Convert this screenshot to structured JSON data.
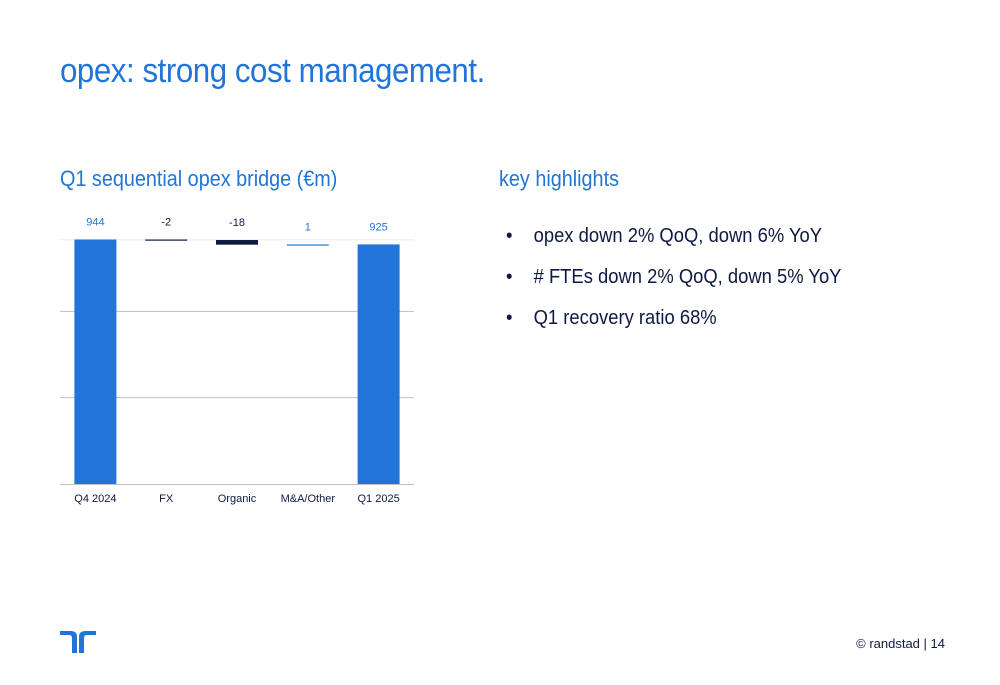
{
  "slide": {
    "title": "opex: strong cost management.",
    "chart_heading": "Q1 sequential opex bridge (€m)",
    "highlights_heading": "key highlights",
    "highlights": [
      "opex down 2% QoQ, down 6% YoY",
      "# FTEs down 2% QoQ, down 5% YoY",
      "Q1 recovery ratio 68%"
    ],
    "bullet": "•",
    "footer_brand": "© randstad",
    "footer_page": "14"
  },
  "colors": {
    "accent": "#2175d9",
    "dark": "#0f1941",
    "grid": "#bfbfbf"
  },
  "chart_data": {
    "type": "bar",
    "subtype": "waterfall",
    "title": "Q1 sequential opex bridge (€m)",
    "categories": [
      "Q4 2024",
      "FX",
      "Organic",
      "M&A/Other",
      "Q1 2025"
    ],
    "values": [
      944,
      -2,
      -18,
      1,
      925
    ],
    "labels": [
      "944",
      "-2",
      "-18",
      "1",
      "925"
    ],
    "kinds": [
      "total",
      "change",
      "change",
      "change",
      "total"
    ],
    "bar_colors": [
      "#2175d9",
      "#0f1941",
      "#0f1941",
      "#2175d9",
      "#2175d9"
    ],
    "ylim": [
      0,
      1000
    ],
    "grid": true
  }
}
